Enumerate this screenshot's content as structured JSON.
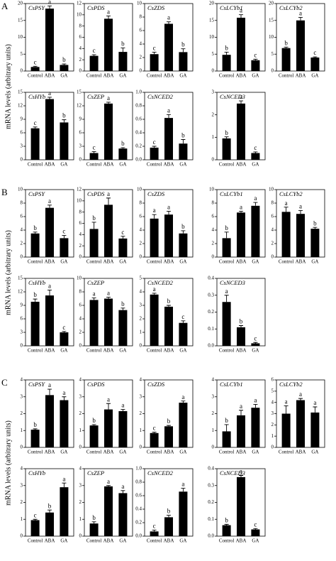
{
  "panels": [
    {
      "label": "A",
      "y_label": "mRNA levels (arbitrary units)"
    },
    {
      "label": "B",
      "y_label": "mRNA levels (arbitrary units)"
    },
    {
      "label": "C",
      "y_label": "mRNA levels (arbitrary units)"
    }
  ],
  "chart_data": [
    {
      "type": "bar",
      "title": "CsPSY",
      "categories": [
        "Control",
        "ABA",
        "GA"
      ],
      "values": [
        1.2,
        18.5,
        1.8
      ],
      "errors": [
        0.2,
        0.8,
        0.3
      ],
      "annotations": [
        "c",
        "a",
        "b"
      ],
      "color": "#000000",
      "ylim": [
        0,
        20
      ],
      "yticks": [
        0,
        5,
        10,
        15,
        20
      ]
    },
    {
      "type": "bar",
      "title": "CsPDS",
      "categories": [
        "Control",
        "ABA",
        "GA"
      ],
      "values": [
        2.7,
        9.3,
        3.4
      ],
      "errors": [
        0.2,
        0.5,
        0.7
      ],
      "annotations": [
        "c",
        "a",
        "b"
      ],
      "color": "#000000",
      "ylim": [
        0,
        12
      ],
      "yticks": [
        0,
        2,
        4,
        6,
        8,
        10,
        12
      ]
    },
    {
      "type": "bar",
      "title": "CsZDS",
      "categories": [
        "Control",
        "ABA",
        "GA"
      ],
      "values": [
        2.5,
        7.0,
        2.8
      ],
      "errors": [
        0.3,
        0.3,
        0.5
      ],
      "annotations": [
        "c",
        "a",
        "b"
      ],
      "color": "#000000",
      "ylim": [
        0,
        10
      ],
      "yticks": [
        0,
        2,
        4,
        6,
        8,
        10
      ]
    },
    {
      "type": "bar",
      "title": "CsLCYb1",
      "categories": [
        "Control",
        "ABA",
        "GA"
      ],
      "values": [
        4.8,
        15.8,
        3.2
      ],
      "errors": [
        0.8,
        0.9,
        0.3
      ],
      "annotations": [
        "b",
        "a",
        "c"
      ],
      "color": "#000000",
      "ylim": [
        0,
        20
      ],
      "yticks": [
        0,
        5,
        10,
        15,
        20
      ]
    },
    {
      "type": "bar",
      "title": "CsLCYb2",
      "categories": [
        "Control",
        "ABA",
        "GA"
      ],
      "values": [
        6.8,
        15.0,
        4.0
      ],
      "errors": [
        0.3,
        0.9,
        0.2
      ],
      "annotations": [
        "b",
        "a",
        "c"
      ],
      "color": "#000000",
      "ylim": [
        0,
        20
      ],
      "yticks": [
        0,
        5,
        10,
        15,
        20
      ]
    },
    {
      "type": "bar",
      "title": "CsHYb",
      "categories": [
        "Control",
        "ABA",
        "GA"
      ],
      "values": [
        7.0,
        13.5,
        8.3
      ],
      "errors": [
        0.3,
        0.4,
        0.6
      ],
      "annotations": [
        "c",
        "a",
        "b"
      ],
      "color": "#000000",
      "ylim": [
        0,
        15
      ],
      "yticks": [
        0,
        3,
        6,
        9,
        12,
        15
      ]
    },
    {
      "type": "bar",
      "title": "CsZEP",
      "categories": [
        "Control",
        "ABA",
        "GA"
      ],
      "values": [
        1.5,
        12.5,
        2.5
      ],
      "errors": [
        0.3,
        0.3,
        0.2
      ],
      "annotations": [
        "c",
        "a",
        "b"
      ],
      "color": "#000000",
      "ylim": [
        0,
        15
      ],
      "yticks": [
        0,
        3,
        6,
        9,
        12,
        15
      ]
    },
    {
      "type": "bar",
      "title": "CsNCED2",
      "categories": [
        "Control",
        "ABA",
        "GA"
      ],
      "values": [
        0.18,
        0.62,
        0.24
      ],
      "errors": [
        0.02,
        0.05,
        0.06
      ],
      "annotations": [
        "c",
        "a",
        "b"
      ],
      "color": "#000000",
      "ylim": [
        0,
        1
      ],
      "yticks": [
        {
          "value": 0,
          "label": "0.0"
        },
        0.2,
        0.4,
        0.6,
        0.8,
        {
          "value": 1,
          "label": "1.0"
        }
      ]
    },
    {
      "type": "bar",
      "title": "CsNCED3",
      "categories": [
        "Control",
        "ABA",
        "GA"
      ],
      "values": [
        0.95,
        2.5,
        0.3
      ],
      "errors": [
        0.07,
        0.12,
        0.05
      ],
      "annotations": [
        "b",
        "a",
        "c"
      ],
      "color": "#000000",
      "ylim": [
        0,
        3
      ],
      "yticks": [
        0,
        1,
        2,
        3
      ]
    },
    {
      "type": "bar",
      "title": "CsPSY",
      "categories": [
        "Control",
        "ABA",
        "GA"
      ],
      "values": [
        3.5,
        7.3,
        2.8
      ],
      "errors": [
        0.2,
        0.4,
        0.4
      ],
      "annotations": [
        "b",
        "a",
        "c"
      ],
      "color": "#000000",
      "ylim": [
        0,
        10
      ],
      "yticks": [
        0,
        2,
        4,
        6,
        8,
        10
      ]
    },
    {
      "type": "bar",
      "title": "CsPDS",
      "categories": [
        "Control",
        "ABA",
        "GA"
      ],
      "values": [
        5.0,
        9.3,
        3.3
      ],
      "errors": [
        1.2,
        1.2,
        0.4
      ],
      "annotations": [
        "b",
        "a",
        "c"
      ],
      "color": "#000000",
      "ylim": [
        0,
        12
      ],
      "yticks": [
        0,
        2,
        4,
        6,
        8,
        10,
        12
      ]
    },
    {
      "type": "bar",
      "title": "CsZDS",
      "categories": [
        "Control",
        "ABA",
        "GA"
      ],
      "values": [
        5.7,
        6.3,
        3.5
      ],
      "errors": [
        0.6,
        0.5,
        0.4
      ],
      "annotations": [
        "a",
        "a",
        "b"
      ],
      "color": "#000000",
      "ylim": [
        0,
        10
      ],
      "yticks": [
        0,
        2,
        4,
        6,
        8,
        10
      ]
    },
    {
      "type": "bar",
      "title": "CsLCYb1",
      "categories": [
        "Control",
        "ABA",
        "GA"
      ],
      "values": [
        2.8,
        6.6,
        7.6
      ],
      "errors": [
        0.9,
        0.2,
        0.5
      ],
      "annotations": [
        "b",
        "a",
        "a"
      ],
      "color": "#000000",
      "ylim": [
        0,
        10
      ],
      "yticks": [
        0,
        2,
        4,
        6,
        8,
        10
      ]
    },
    {
      "type": "bar",
      "title": "CsLCYb2",
      "categories": [
        "Control",
        "ABA",
        "GA"
      ],
      "values": [
        6.7,
        6.4,
        4.2
      ],
      "errors": [
        0.7,
        0.5,
        0.2
      ],
      "annotations": [
        "a",
        "a",
        "b"
      ],
      "color": "#000000",
      "ylim": [
        0,
        10
      ],
      "yticks": [
        0,
        2,
        4,
        6,
        8,
        10
      ]
    },
    {
      "type": "bar",
      "title": "CsHYb",
      "categories": [
        "Control",
        "ABA",
        "GA"
      ],
      "values": [
        9.8,
        11.2,
        3.0
      ],
      "errors": [
        0.6,
        1.2,
        0.2
      ],
      "annotations": [
        "b",
        "a",
        "c"
      ],
      "color": "#000000",
      "ylim": [
        0,
        15
      ],
      "yticks": [
        0,
        3,
        6,
        9,
        12,
        15
      ]
    },
    {
      "type": "bar",
      "title": "CsZEP",
      "categories": [
        "Control",
        "ABA",
        "GA"
      ],
      "values": [
        6.8,
        7.0,
        5.3
      ],
      "errors": [
        0.3,
        0.2,
        0.3
      ],
      "annotations": [
        "a",
        "a",
        "b"
      ],
      "color": "#000000",
      "ylim": [
        0,
        10
      ],
      "yticks": [
        0,
        2,
        4,
        6,
        8,
        10
      ]
    },
    {
      "type": "bar",
      "title": "CsNCED2",
      "categories": [
        "Control",
        "ABA",
        "GA"
      ],
      "values": [
        3.8,
        2.9,
        1.7
      ],
      "errors": [
        0.1,
        0.1,
        0.15
      ],
      "annotations": [
        "a",
        "b",
        "c"
      ],
      "color": "#000000",
      "ylim": [
        0,
        5
      ],
      "yticks": [
        0,
        1,
        2,
        3,
        4,
        5
      ]
    },
    {
      "type": "bar",
      "title": "CsNCED3",
      "categories": [
        "Control",
        "ABA",
        "GA"
      ],
      "values": [
        0.26,
        0.11,
        0.015
      ],
      "errors": [
        0.04,
        0.01,
        0.005
      ],
      "annotations": [
        "a",
        "b",
        "c"
      ],
      "color": "#000000",
      "ylim": [
        0,
        0.4
      ],
      "yticks": [
        {
          "value": 0,
          "label": "0.0"
        },
        0.1,
        0.2,
        0.3,
        0.4
      ]
    },
    {
      "type": "bar",
      "title": "CsPSY",
      "categories": [
        "Control",
        "ABA",
        "GA"
      ],
      "values": [
        1.05,
        3.1,
        2.8
      ],
      "errors": [
        0.05,
        0.35,
        0.2
      ],
      "annotations": [
        "b",
        "a",
        "a"
      ],
      "color": "#000000",
      "ylim": [
        0,
        4
      ],
      "yticks": [
        0,
        1,
        2,
        3,
        4
      ]
    },
    {
      "type": "bar",
      "title": "CsPDS",
      "categories": [
        "Control",
        "ABA",
        "GA"
      ],
      "values": [
        1.3,
        2.25,
        2.15
      ],
      "errors": [
        0.05,
        0.35,
        0.1
      ],
      "annotations": [
        "b",
        "a",
        "a"
      ],
      "color": "#000000",
      "ylim": [
        0,
        4
      ],
      "yticks": [
        0,
        1,
        2,
        3,
        4
      ]
    },
    {
      "type": "bar",
      "title": "CsZDS",
      "categories": [
        "Control",
        "ABA",
        "GA"
      ],
      "values": [
        0.85,
        1.25,
        2.65
      ],
      "errors": [
        0.05,
        0.05,
        0.1
      ],
      "annotations": [
        "c",
        "b",
        "a"
      ],
      "color": "#000000",
      "ylim": [
        0,
        4
      ],
      "yticks": [
        0,
        1,
        2,
        3,
        4
      ]
    },
    {
      "type": "bar",
      "title": "CsLCYb1",
      "categories": [
        "Control",
        "ABA",
        "GA"
      ],
      "values": [
        0.95,
        1.9,
        2.35
      ],
      "errors": [
        0.4,
        0.3,
        0.2
      ],
      "annotations": [
        "b",
        "a",
        "a"
      ],
      "color": "#000000",
      "ylim": [
        0,
        4
      ],
      "yticks": [
        0,
        1,
        2,
        3,
        4
      ]
    },
    {
      "type": "bar",
      "title": "CsLCYb2",
      "categories": [
        "Control",
        "ABA",
        "GA"
      ],
      "values": [
        3.0,
        4.2,
        3.1
      ],
      "errors": [
        0.7,
        0.15,
        0.5
      ],
      "annotations": [
        "a",
        "a",
        "a"
      ],
      "color": "#000000",
      "ylim": [
        0,
        6
      ],
      "yticks": [
        0,
        1,
        2,
        3,
        4,
        5,
        6
      ]
    },
    {
      "type": "bar",
      "title": "CsHYb",
      "categories": [
        "Control",
        "ABA",
        "GA"
      ],
      "values": [
        0.95,
        1.4,
        2.9
      ],
      "errors": [
        0.05,
        0.15,
        0.25
      ],
      "annotations": [
        "c",
        "b",
        "a"
      ],
      "color": "#000000",
      "ylim": [
        0,
        4
      ],
      "yticks": [
        0,
        1,
        2,
        3,
        4
      ]
    },
    {
      "type": "bar",
      "title": "CsZEP",
      "categories": [
        "Control",
        "ABA",
        "GA"
      ],
      "values": [
        0.75,
        2.95,
        2.55
      ],
      "errors": [
        0.1,
        0.05,
        0.15
      ],
      "annotations": [
        "b",
        "a",
        "a"
      ],
      "color": "#000000",
      "ylim": [
        0,
        4
      ],
      "yticks": [
        0,
        1,
        2,
        3,
        4
      ]
    },
    {
      "type": "bar",
      "title": "CsNCED2",
      "categories": [
        "Control",
        "ABA",
        "GA"
      ],
      "values": [
        0.07,
        0.28,
        0.66
      ],
      "errors": [
        0.02,
        0.03,
        0.05
      ],
      "annotations": [
        "c",
        "b",
        "a"
      ],
      "color": "#000000",
      "ylim": [
        0,
        1
      ],
      "yticks": [
        {
          "value": 0,
          "label": "0.0"
        },
        0.2,
        0.4,
        0.6,
        0.8,
        {
          "value": 1,
          "label": "1.0"
        }
      ]
    },
    {
      "type": "bar",
      "title": "CsNCED3",
      "categories": [
        "Control",
        "ABA",
        "GA"
      ],
      "values": [
        0.065,
        0.35,
        0.04
      ],
      "errors": [
        0.005,
        0.01,
        0.005
      ],
      "annotations": [
        "b",
        "a",
        "c"
      ],
      "color": "#000000",
      "ylim": [
        0,
        0.4
      ],
      "yticks": [
        {
          "value": 0,
          "label": "0.0"
        },
        0.1,
        0.2,
        0.3,
        0.4
      ]
    }
  ]
}
